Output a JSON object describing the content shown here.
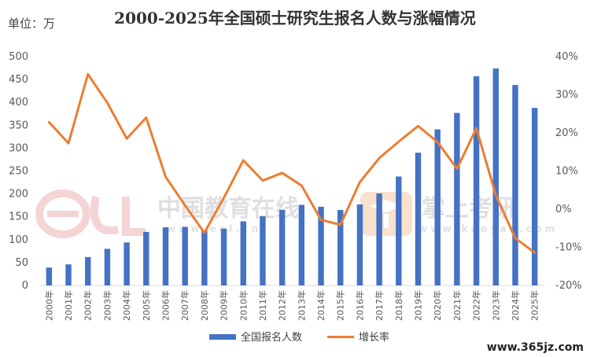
{
  "chart_data": {
    "type": "bar+line",
    "title": "2000-2025年全国硕士研究生报名人数与涨幅情况",
    "unit_label": "单位：万",
    "categories": [
      "2000年",
      "2001年",
      "2002年",
      "2003年",
      "2004年",
      "2005年",
      "2006年",
      "2007年",
      "2008年",
      "2009年",
      "2010年",
      "2011年",
      "2012年",
      "2013年",
      "2014年",
      "2015年",
      "2016年",
      "2017年",
      "2018年",
      "2019年",
      "2020年",
      "2021年",
      "2022年",
      "2023年",
      "2024年",
      "2025年"
    ],
    "series": [
      {
        "name": "全国报名人数",
        "type": "bar",
        "axis": "left",
        "color": "#4472C4",
        "values": [
          39,
          46,
          62,
          80,
          94,
          117,
          127,
          128,
          120,
          124,
          140,
          151,
          165,
          176,
          172,
          165,
          177,
          201,
          238,
          290,
          341,
          377,
          457,
          474,
          438,
          388
        ]
      },
      {
        "name": "增长率",
        "type": "line",
        "axis": "right",
        "color": "#ED7D31",
        "values": [
          22.8,
          17.3,
          35.4,
          27.9,
          18.5,
          24.0,
          8.5,
          1.0,
          -6.2,
          3.0,
          12.8,
          7.5,
          9.5,
          6.2,
          -2.8,
          -4.1,
          7.1,
          13.4,
          17.7,
          21.8,
          17.6,
          10.6,
          21.2,
          3.7,
          -7.6,
          -11.4
        ]
      }
    ],
    "ylim": [
      0,
      500
    ],
    "y_ticks": [
      "0",
      "50",
      "100",
      "150",
      "200",
      "250",
      "300",
      "350",
      "400",
      "450",
      "500"
    ],
    "y2lim": [
      -20,
      40
    ],
    "y2_ticks": [
      "-20%",
      "-10%",
      "0%",
      "10%",
      "20%",
      "30%",
      "40%"
    ],
    "grid": false,
    "legend_position": "bottom"
  },
  "watermarks": {
    "left_main": "中国教育在线",
    "left_sub": "w w w . e o l . c n",
    "right_main": "掌上考研",
    "right_sub": "w w w . k a o y a n . c o m",
    "corner": "www.365jz.com"
  }
}
